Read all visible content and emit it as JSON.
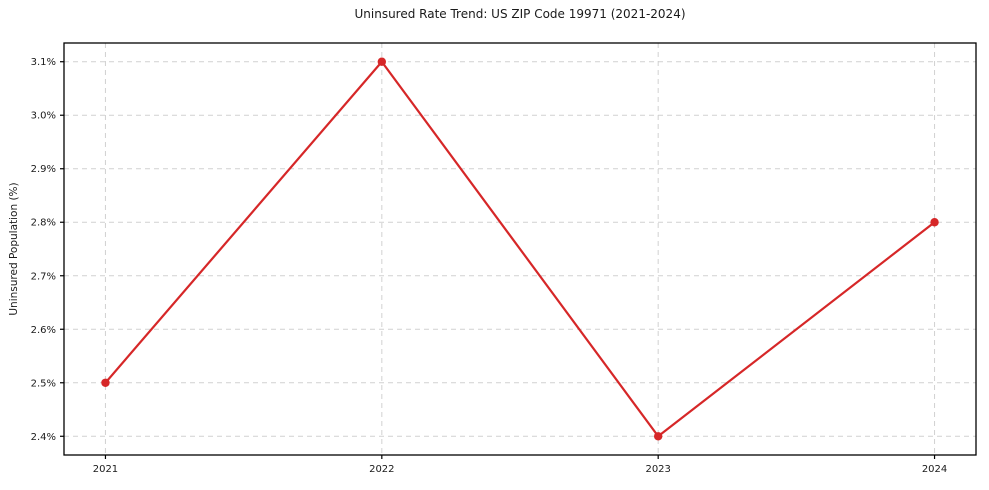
{
  "chart_data": {
    "type": "line",
    "title": "Uninsured Rate Trend: US ZIP Code 19971 (2021-2024)",
    "xlabel": "",
    "ylabel": "Uninsured Population (%)",
    "x": [
      2021,
      2022,
      2023,
      2024
    ],
    "values": [
      2.5,
      3.1,
      2.4,
      2.8
    ],
    "xticks": [
      "2021",
      "2022",
      "2023",
      "2024"
    ],
    "ytick_values": [
      2.4,
      2.5,
      2.6,
      2.7,
      2.8,
      2.9,
      3.0,
      3.1
    ],
    "yticks": [
      "2.4%",
      "2.5%",
      "2.6%",
      "2.7%",
      "2.8%",
      "2.9%",
      "3.0%",
      "3.1%"
    ],
    "xlim": [
      2020.85,
      2024.15
    ],
    "ylim": [
      2.365,
      3.135
    ],
    "grid": true,
    "grid_style": "dashed",
    "grid_color": "#cccccc",
    "legend": false,
    "line_color": "#d62728",
    "marker": "circle",
    "marker_radius": 4.2,
    "background": "#ffffff"
  }
}
